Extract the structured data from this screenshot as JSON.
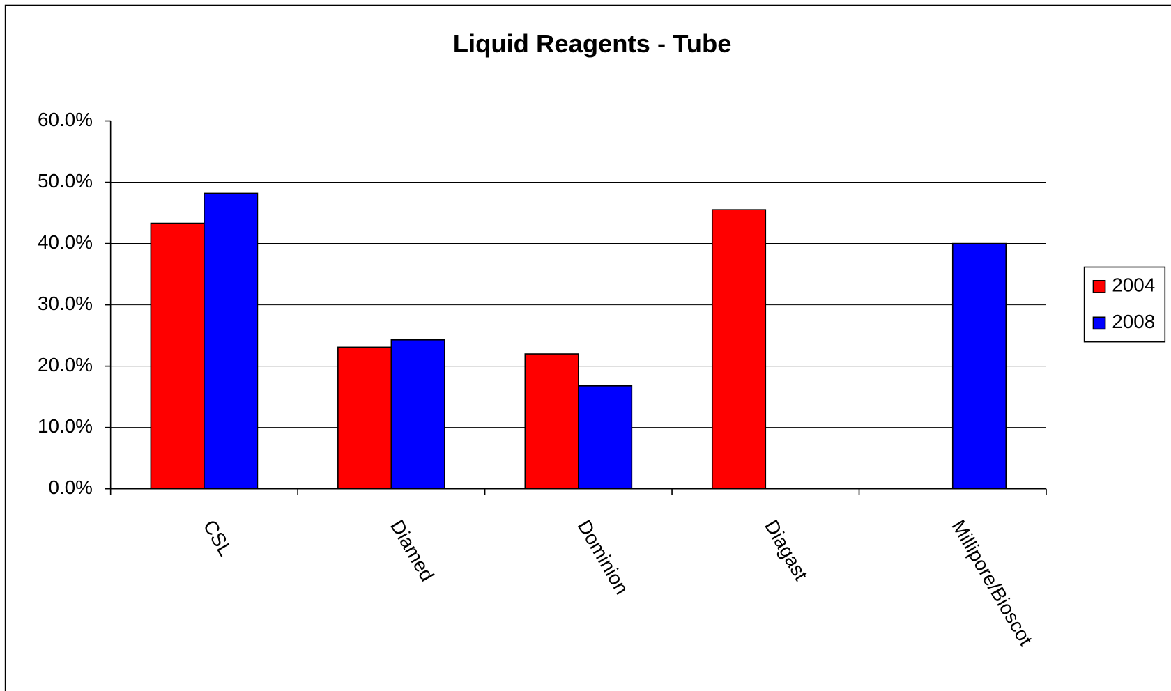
{
  "chart_data": {
    "type": "bar",
    "title": "Liquid Reagents - Tube",
    "categories": [
      "CSL",
      "Diamed",
      "Dominion",
      "Diagast",
      "Millipore/Bioscot"
    ],
    "series": [
      {
        "name": "2004",
        "color": "#ff0000",
        "values": [
          43.3,
          23.1,
          22.0,
          45.5,
          null
        ]
      },
      {
        "name": "2008",
        "color": "#0000ff",
        "values": [
          48.2,
          24.3,
          16.8,
          null,
          40.0
        ]
      }
    ],
    "ylim": [
      0,
      60
    ],
    "yticks": [
      {
        "value": 0,
        "label": "0.0%"
      },
      {
        "value": 10,
        "label": "10.0%"
      },
      {
        "value": 20,
        "label": "20.0%"
      },
      {
        "value": 30,
        "label": "30.0%"
      },
      {
        "value": 40,
        "label": "40.0%"
      },
      {
        "value": 50,
        "label": "50.0%"
      },
      {
        "value": 60,
        "label": "60.0%"
      }
    ],
    "grid": true,
    "legend": "right"
  }
}
